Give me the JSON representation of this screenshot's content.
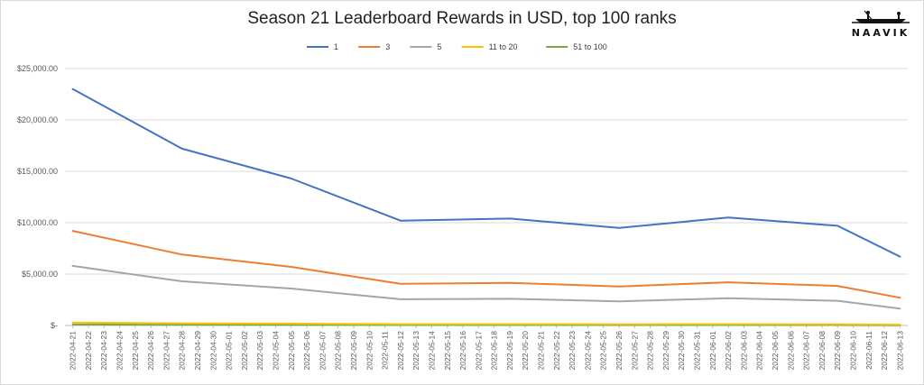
{
  "chart_data": {
    "type": "line",
    "title": "Season 21 Leaderboard Rewards in USD, top 100 ranks",
    "xlabel": "",
    "ylabel": "",
    "ylim": [
      0,
      25000
    ],
    "yticks": [
      "$-",
      "$5,000.00",
      "$10,000.00",
      "$15,000.00",
      "$20,000.00",
      "$25,000.00"
    ],
    "grid": true,
    "legend_position": "top-center",
    "x": [
      "2022-04-21",
      "2022-04-22",
      "2022-04-23",
      "2022-04-24",
      "2022-04-25",
      "2022-04-26",
      "2022-04-27",
      "2022-04-28",
      "2022-04-29",
      "2022-04-30",
      "2022-05-01",
      "2022-05-02",
      "2022-05-03",
      "2022-05-04",
      "2022-05-05",
      "2022-05-06",
      "2022-05-07",
      "2022-05-08",
      "2022-05-09",
      "2022-05-10",
      "2022-05-11",
      "2022-05-12",
      "2022-05-13",
      "2022-05-14",
      "2022-05-15",
      "2022-05-16",
      "2022-05-17",
      "2022-05-18",
      "2022-05-19",
      "2022-05-20",
      "2022-05-21",
      "2022-05-22",
      "2022-05-23",
      "2022-05-24",
      "2022-05-25",
      "2022-05-26",
      "2022-05-27",
      "2022-05-28",
      "2022-05-29",
      "2022-05-30",
      "2022-05-31",
      "2022-06-01",
      "2022-06-02",
      "2022-06-03",
      "2022-06-04",
      "2022-06-05",
      "2022-06-06",
      "2022-06-07",
      "2022-06-08",
      "2022-06-09",
      "2022-06-10",
      "2022-06-11",
      "2022-06-12",
      "2022-06-13"
    ],
    "series": [
      {
        "name": "1",
        "color": "#4472c4",
        "points": [
          [
            "2022-04-21",
            23000
          ],
          [
            "2022-04-28",
            17200
          ],
          [
            "2022-05-05",
            14300
          ],
          [
            "2022-05-12",
            10200
          ],
          [
            "2022-05-19",
            10400
          ],
          [
            "2022-05-26",
            9500
          ],
          [
            "2022-06-02",
            10500
          ],
          [
            "2022-06-09",
            9700
          ],
          [
            "2022-06-13",
            6700
          ]
        ]
      },
      {
        "name": "3",
        "color": "#ed7d31",
        "points": [
          [
            "2022-04-21",
            9200
          ],
          [
            "2022-04-28",
            6900
          ],
          [
            "2022-05-05",
            5700
          ],
          [
            "2022-05-12",
            4050
          ],
          [
            "2022-05-19",
            4150
          ],
          [
            "2022-05-26",
            3800
          ],
          [
            "2022-06-02",
            4200
          ],
          [
            "2022-06-09",
            3850
          ],
          [
            "2022-06-13",
            2700
          ]
        ]
      },
      {
        "name": "5",
        "color": "#a5a5a5",
        "points": [
          [
            "2022-04-21",
            5800
          ],
          [
            "2022-04-28",
            4300
          ],
          [
            "2022-05-05",
            3600
          ],
          [
            "2022-05-12",
            2550
          ],
          [
            "2022-05-19",
            2600
          ],
          [
            "2022-05-26",
            2350
          ],
          [
            "2022-06-02",
            2650
          ],
          [
            "2022-06-09",
            2400
          ],
          [
            "2022-06-13",
            1650
          ]
        ]
      },
      {
        "name": "11 to 20",
        "color": "#ffc000",
        "points": [
          [
            "2022-04-21",
            280
          ],
          [
            "2022-04-28",
            210
          ],
          [
            "2022-05-05",
            180
          ],
          [
            "2022-05-12",
            130
          ],
          [
            "2022-05-19",
            130
          ],
          [
            "2022-05-26",
            120
          ],
          [
            "2022-06-02",
            130
          ],
          [
            "2022-06-09",
            120
          ],
          [
            "2022-06-13",
            80
          ]
        ]
      },
      {
        "name": "51 to 100",
        "color": "#70ad47",
        "points": [
          [
            "2022-04-21",
            100
          ],
          [
            "2022-04-28",
            75
          ],
          [
            "2022-05-05",
            60
          ],
          [
            "2022-05-12",
            45
          ],
          [
            "2022-05-19",
            45
          ],
          [
            "2022-05-26",
            40
          ],
          [
            "2022-06-02",
            45
          ],
          [
            "2022-06-09",
            40
          ],
          [
            "2022-06-13",
            30
          ]
        ]
      }
    ]
  },
  "logo": {
    "text": "NAAVIK"
  }
}
